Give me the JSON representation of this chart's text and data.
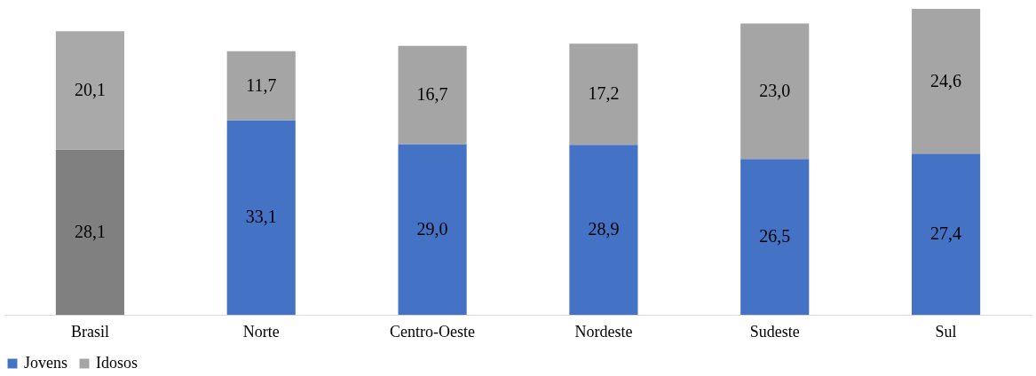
{
  "chart_data": {
    "type": "bar",
    "stacked": true,
    "categories": [
      "Brasil",
      "Norte",
      "Centro-Oeste",
      "Nordeste",
      "Sudeste",
      "Sul"
    ],
    "series": [
      {
        "name": "Jovens",
        "color": "#4472c4",
        "colors": [
          "#808080",
          "#4472c4",
          "#4472c4",
          "#4472c4",
          "#4472c4",
          "#4472c4"
        ],
        "values": [
          28.1,
          33.1,
          29.0,
          28.9,
          26.5,
          27.4
        ],
        "value_labels": [
          "28,1",
          "33,1",
          "29,0",
          "28,9",
          "26,5",
          "27,4"
        ]
      },
      {
        "name": "Idosos",
        "color": "#a5a5a5",
        "colors": [
          "#a9a9a9",
          "#a5a5a5",
          "#a5a5a5",
          "#a5a5a5",
          "#a5a5a5",
          "#a5a5a5"
        ],
        "values": [
          20.1,
          11.7,
          16.7,
          17.2,
          23.0,
          24.6
        ],
        "value_labels": [
          "20,1",
          "11,7",
          "16,7",
          "17,2",
          "23,0",
          "24,6"
        ]
      }
    ],
    "legend": "bottom",
    "grid": false
  }
}
